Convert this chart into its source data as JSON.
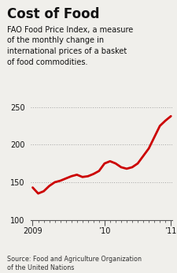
{
  "title": "Cost of Food",
  "subtitle_lines": [
    "FAO Food Price Index, a measure",
    "of the monthly change in",
    "international prices of a basket",
    "of food commodities."
  ],
  "source": "Source: Food and Agriculture Organization\nof the United Nations",
  "ylim": [
    100,
    260
  ],
  "yticks": [
    100,
    150,
    200,
    250
  ],
  "background_color": "#f0efeb",
  "line_color": "#cc0000",
  "line_width": 2.0,
  "data_x": [
    0,
    1,
    2,
    3,
    4,
    5,
    6,
    7,
    8,
    9,
    10,
    11,
    12,
    13,
    14,
    15,
    16,
    17,
    18,
    19,
    20,
    21,
    22,
    23,
    24,
    25
  ],
  "data_y": [
    143,
    135,
    138,
    145,
    150,
    152,
    155,
    158,
    160,
    157,
    158,
    161,
    165,
    175,
    178,
    175,
    170,
    168,
    170,
    175,
    185,
    195,
    210,
    225,
    232,
    238
  ],
  "xtick_positions": [
    0,
    13,
    25
  ],
  "xtick_labels": [
    "2009",
    "’10",
    "’11"
  ],
  "grid_color": "#999999",
  "title_fontsize": 12,
  "subtitle_fontsize": 7.0,
  "tick_fontsize": 7.0,
  "source_fontsize": 5.8,
  "fig_width": 2.25,
  "fig_height": 3.46,
  "fig_dpi": 100
}
